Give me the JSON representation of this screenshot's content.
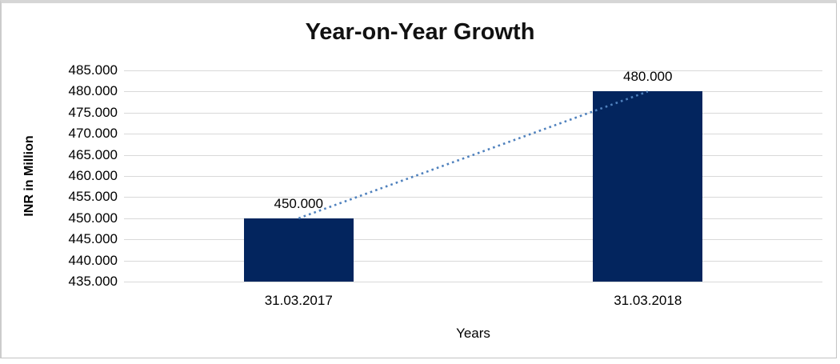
{
  "chart": {
    "title": "Year-on-Year Growth",
    "y_axis_title": "INR in Million",
    "x_axis_title": "Years"
  },
  "chart_data": {
    "type": "bar",
    "title": "Year-on-Year Growth",
    "xlabel": "Years",
    "ylabel": "INR in Million",
    "categories": [
      "31.03.2017",
      "31.03.2018"
    ],
    "values": [
      450000,
      480000
    ],
    "value_labels": [
      "450.000",
      "480.000"
    ],
    "ylim": [
      435000,
      485000
    ],
    "ytick_step": 5000,
    "ytick_labels": [
      "435.000",
      "440.000",
      "445.000",
      "450.000",
      "455.000",
      "460.000",
      "465.000",
      "470.000",
      "475.000",
      "480.000",
      "485.000"
    ],
    "grid": true,
    "legend": "none",
    "bar_color": "#03255e",
    "gridline_color": "#d9d9d9",
    "trendline": {
      "style": "dotted",
      "color": "#4f81bd",
      "from_category": "31.03.2017",
      "to_category": "31.03.2018"
    }
  }
}
